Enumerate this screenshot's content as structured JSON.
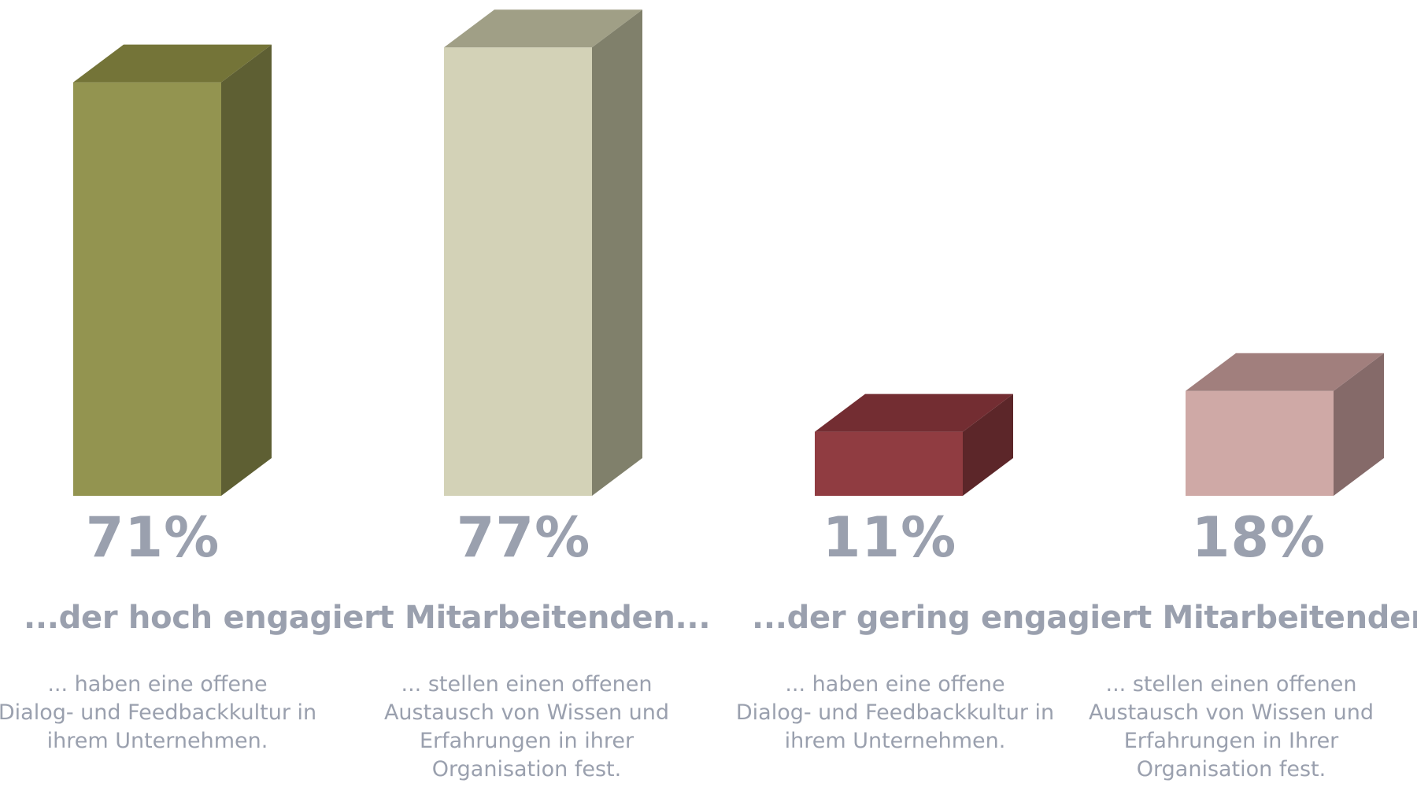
{
  "chart_data": {
    "type": "bar",
    "title": "",
    "xlabel": "",
    "ylabel": "",
    "ylim": [
      0,
      80
    ],
    "grid": false,
    "legend": "none",
    "groups": [
      "...der hoch engagiert Mitarbeitenden...",
      "...der gering engagiert Mitarbeitenden..."
    ],
    "bars": [
      {
        "value": 71,
        "label": "71%",
        "group": 0,
        "description": [
          "... haben eine offene",
          "Dialog- und Feedbackkultur in",
          "ihrem Unternehmen."
        ],
        "colors": {
          "front": "#939450",
          "side": "#5e5f33",
          "top": "#747438"
        }
      },
      {
        "value": 77,
        "label": "77%",
        "group": 0,
        "description": [
          "... stellen einen offenen",
          "Austausch von Wissen und",
          "Erfahrungen in ihrer",
          "Organisation fest."
        ],
        "colors": {
          "front": "#d3d2b7",
          "side": "#80806b",
          "top": "#a09f86"
        }
      },
      {
        "value": 11,
        "label": "11%",
        "group": 1,
        "description": [
          "... haben eine offene",
          "Dialog- und Feedbackkultur in",
          "ihrem Unternehmen."
        ],
        "colors": {
          "front": "#903c41",
          "side": "#5c2629",
          "top": "#732d32"
        }
      },
      {
        "value": 18,
        "label": "18%",
        "group": 1,
        "description": [
          "... stellen einen offenen",
          "Austausch von Wissen und",
          "Erfahrungen in Ihrer",
          "Organisation fest."
        ],
        "colors": {
          "front": "#cfa9a6",
          "side": "#856a69",
          "top": "#a17f7d"
        }
      }
    ],
    "text_color": "#9aa0ae"
  }
}
